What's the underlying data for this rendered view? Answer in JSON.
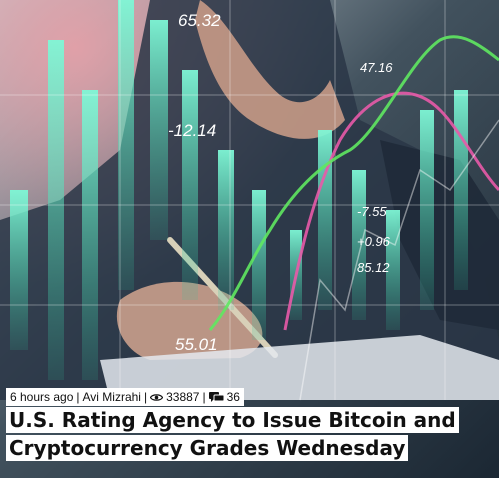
{
  "article": {
    "image_labels": [
      "65.32",
      "-12.14",
      "47.16",
      "-7.55",
      "+0.96",
      "85.12",
      "55.01"
    ],
    "meta": {
      "time": "6 hours ago",
      "separator": "|",
      "author": "Avi Mizrahi",
      "views": "33887",
      "comments": "36"
    },
    "title": "U.S. Rating Agency to Issue Bitcoin and Cryptocurrency Grades Wednesday"
  },
  "colors": {
    "bar_teal": "#5ff0c8",
    "line_pink": "#e85aa8",
    "line_green": "#5fe860",
    "suit": "#2a3646"
  },
  "icons": {
    "views": "eye-icon",
    "comments": "speech-bubbles-icon"
  }
}
